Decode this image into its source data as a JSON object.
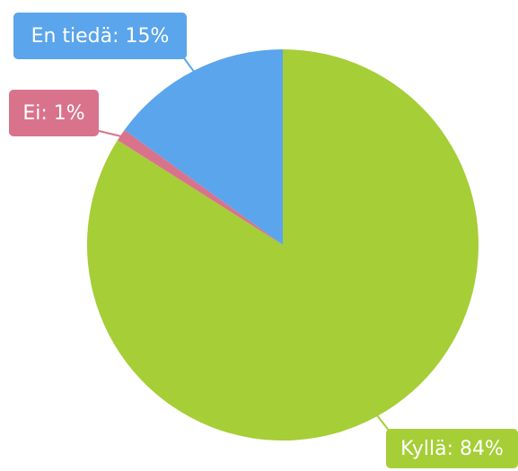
{
  "chart_data": {
    "type": "pie",
    "values": [
      84,
      1,
      15
    ],
    "value_labels": [
      "Kyllä: 84%",
      "Ei: 1%",
      "En tiedä: 15%"
    ],
    "colors": [
      "#a5ce37",
      "#d9738c",
      "#5aa5ec"
    ]
  }
}
